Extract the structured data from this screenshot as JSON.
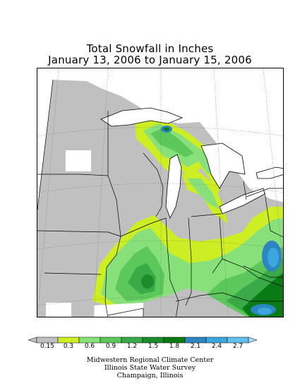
{
  "title": {
    "line1": "Total Snowfall in Inches",
    "line2": "January 13, 2006 to January 15, 2006"
  },
  "legend": {
    "bins": [
      {
        "label": "0.15",
        "color": "#c0c0c0"
      },
      {
        "label": "0.3",
        "color": "#ccee22"
      },
      {
        "label": "0.6",
        "color": "#88e07a"
      },
      {
        "label": "0.9",
        "color": "#5cc85c"
      },
      {
        "label": "1.2",
        "color": "#3aaa48"
      },
      {
        "label": "1.5",
        "color": "#1a8c2a"
      },
      {
        "label": "1.8",
        "color": "#0a7a14"
      },
      {
        "label": "2.1",
        "color": "#2e86c1"
      },
      {
        "label": "2.4",
        "color": "#3aa6dd"
      },
      {
        "label": "2.7",
        "color": "#62bfeb"
      }
    ],
    "top_color": "#a8dcf5"
  },
  "credits": {
    "line1": "Midwestern Regional Climate Center",
    "line2": "Illinois State Water Survey",
    "line3": "Champaign, Illinois"
  },
  "colors": {
    "no_snow": "#c0c0c0",
    "background": "#ffffff",
    "borders": "#000000"
  }
}
